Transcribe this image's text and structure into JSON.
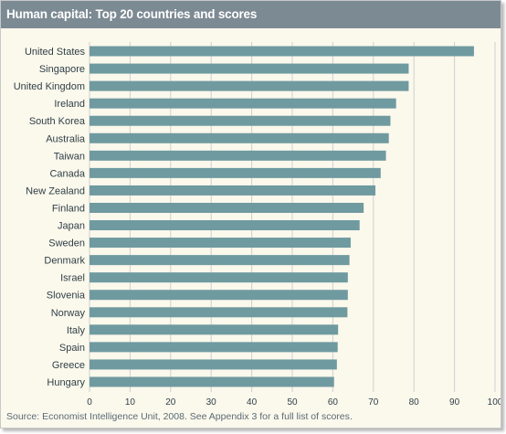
{
  "header": {
    "title": "Human capital: Top 20 countries and scores"
  },
  "footer": {
    "source": "Source: Economist Intelligence Unit, 2008. See Appendix 3 for a full list of scores."
  },
  "colors": {
    "bar": "#6f9aa0",
    "title_bar": "#7c8a93",
    "background": "#fbf8ec",
    "grid": "#d0d0d0"
  },
  "chart_data": {
    "type": "bar",
    "orientation": "horizontal",
    "title": "Human capital: Top 20 countries and scores",
    "xlabel": "",
    "ylabel": "",
    "xlim": [
      0,
      100
    ],
    "xticks": [
      "0",
      "10",
      "20",
      "30",
      "40",
      "50",
      "60",
      "70",
      "80",
      "90",
      "100"
    ],
    "grid": true,
    "categories": [
      "United States",
      "Singapore",
      "United Kingdom",
      "Ireland",
      "South Korea",
      "Australia",
      "Taiwan",
      "Canada",
      "New Zealand",
      "Finland",
      "Japan",
      "Sweden",
      "Denmark",
      "Israel",
      "Slovenia",
      "Norway",
      "Italy",
      "Spain",
      "Greece",
      "Hungary"
    ],
    "values": [
      94.8,
      78.7,
      78.7,
      75.6,
      74.2,
      73.8,
      73.1,
      71.8,
      70.5,
      67.6,
      66.6,
      64.4,
      64.1,
      63.7,
      63.7,
      63.6,
      61.3,
      61.2,
      61.0,
      60.3
    ]
  }
}
